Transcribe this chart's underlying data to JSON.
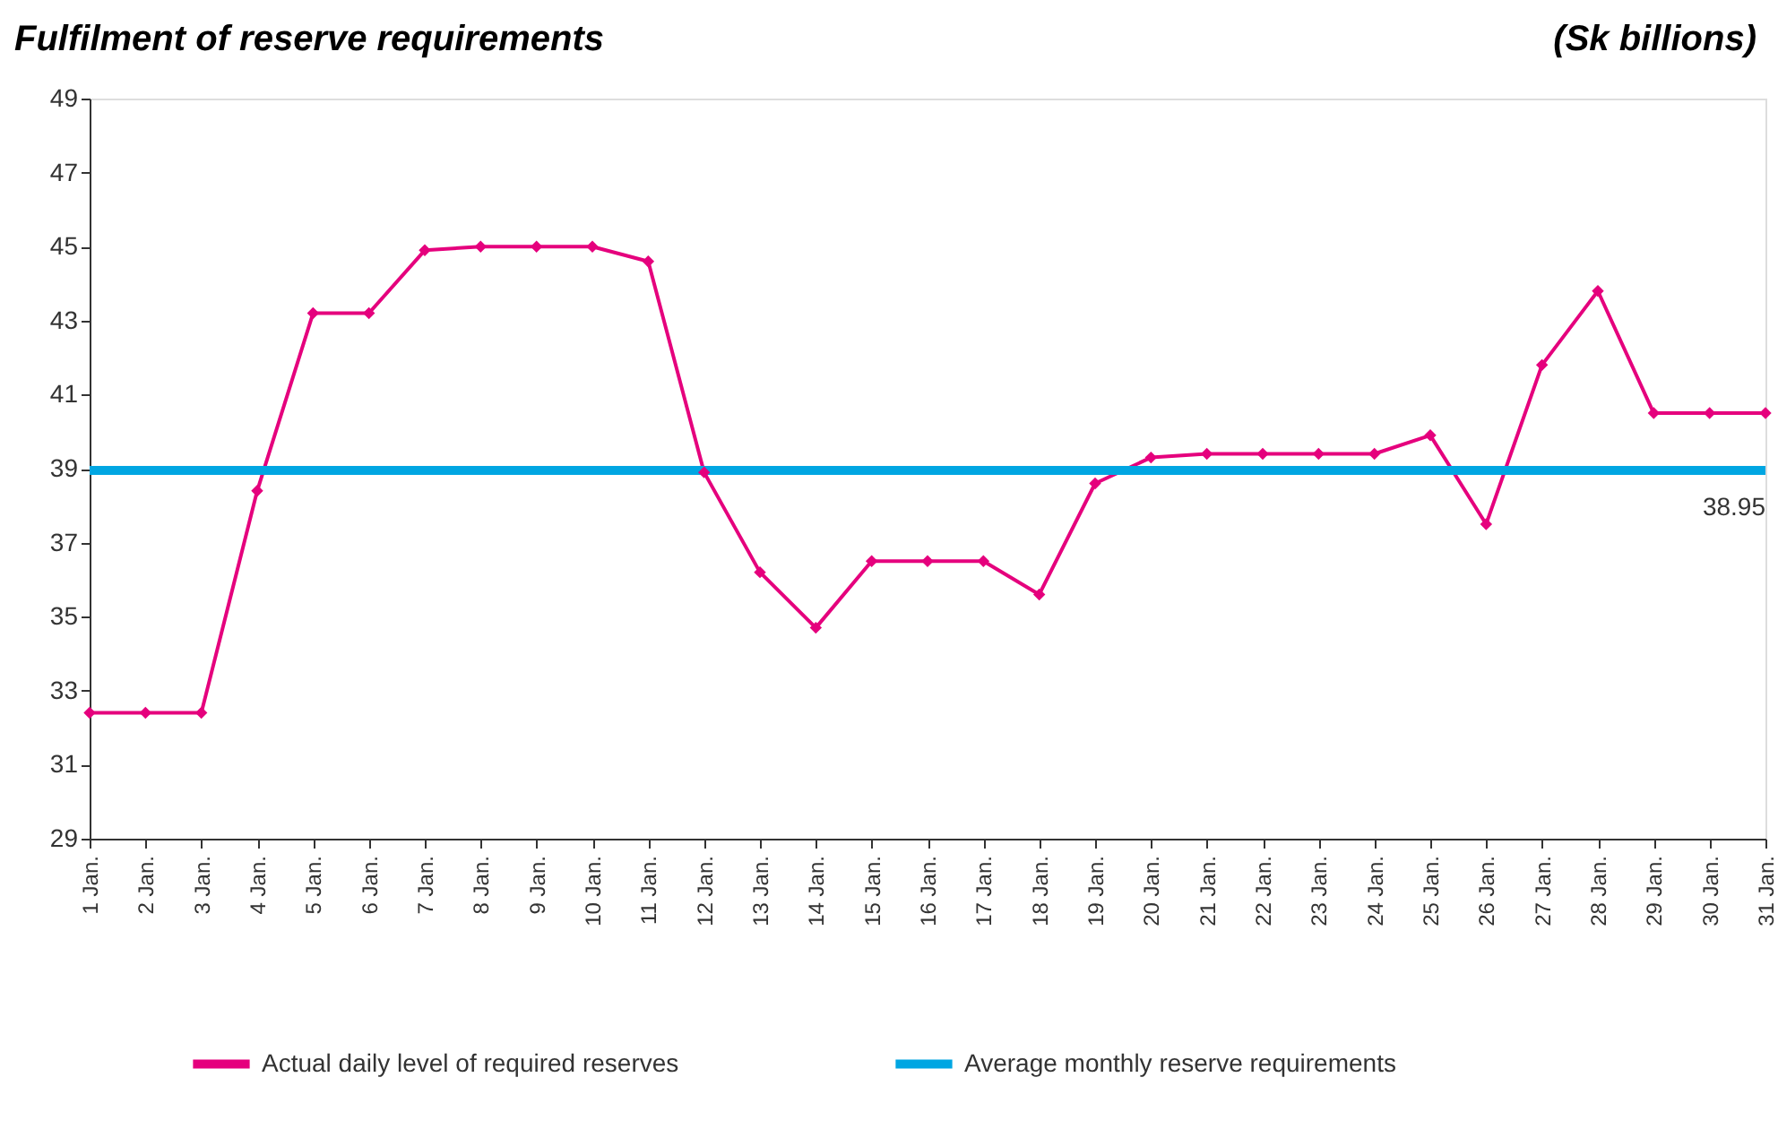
{
  "chart_data": {
    "type": "line",
    "title": "Fulfilment of reserve requirements",
    "ylabel": "(Sk billions)",
    "categories": [
      "1 Jan.",
      "2 Jan.",
      "3 Jan.",
      "4 Jan.",
      "5 Jan.",
      "6 Jan.",
      "7 Jan.",
      "8 Jan.",
      "9 Jan.",
      "10 Jan.",
      "11 Jan.",
      "12 Jan.",
      "13 Jan.",
      "14 Jan.",
      "15 Jan.",
      "16 Jan.",
      "17 Jan.",
      "18 Jan.",
      "19 Jan.",
      "20 Jan.",
      "21 Jan.",
      "22 Jan.",
      "23 Jan.",
      "24 Jan.",
      "25 Jan.",
      "26 Jan.",
      "27 Jan.",
      "28 Jan.",
      "29 Jan.",
      "30 Jan.",
      "31 Jan."
    ],
    "series": [
      {
        "name": "Actual daily level of required reserves",
        "color": "#e5007d",
        "values": [
          32.4,
          32.4,
          32.4,
          38.4,
          43.2,
          43.2,
          44.9,
          45.0,
          45.0,
          45.0,
          44.6,
          38.9,
          36.2,
          34.7,
          36.5,
          36.5,
          36.5,
          35.6,
          38.6,
          39.3,
          39.4,
          39.4,
          39.4,
          39.4,
          39.9,
          37.5,
          41.8,
          43.8,
          40.5,
          40.5,
          40.5
        ]
      },
      {
        "name": "Average monthly reserve requirements",
        "color": "#00a6e2",
        "marker": "none",
        "values": [
          38.95,
          38.95,
          38.95,
          38.95,
          38.95,
          38.95,
          38.95,
          38.95,
          38.95,
          38.95,
          38.95,
          38.95,
          38.95,
          38.95,
          38.95,
          38.95,
          38.95,
          38.95,
          38.95,
          38.95,
          38.95,
          38.95,
          38.95,
          38.95,
          38.95,
          38.95,
          38.95,
          38.95,
          38.95,
          38.95,
          38.95
        ]
      }
    ],
    "annotations": [
      {
        "text": "38.95",
        "x": "31 Jan.",
        "y": 38.95
      }
    ],
    "ylim": [
      29,
      49
    ],
    "yticks": [
      29,
      31,
      33,
      35,
      37,
      39,
      41,
      43,
      45,
      47,
      49
    ],
    "marker": "diamond",
    "line_style": "solid",
    "grid": false,
    "legend": "bottom"
  }
}
